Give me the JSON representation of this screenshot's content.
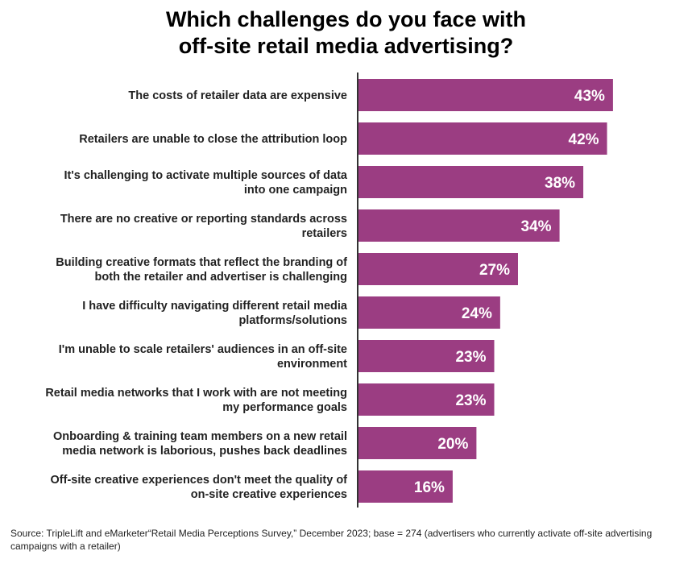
{
  "chart_data": {
    "type": "bar",
    "orientation": "horizontal",
    "title": "Which challenges do you face with off-site retail media advertising?",
    "title_lines": [
      "Which challenges do you face with",
      "off-site retail media advertising?"
    ],
    "categories": [
      [
        "The costs of retailer data are expensive"
      ],
      [
        "Retailers are unable to close the attribution loop"
      ],
      [
        "It's challenging to activate multiple sources of data",
        "into one campaign"
      ],
      [
        "There are no creative or reporting standards across",
        "retailers"
      ],
      [
        "Building creative formats that reflect the branding of",
        "both the retailer and advertiser is challenging"
      ],
      [
        "I have difficulty navigating different retail media",
        "platforms/solutions"
      ],
      [
        "I'm unable to scale retailers' audiences in an off-site",
        "environment"
      ],
      [
        "Retail media networks that I work with are not meeting",
        "my performance goals"
      ],
      [
        "Onboarding & training team members on a new retail",
        "media network is laborious, pushes back deadlines"
      ],
      [
        "Off-site creative experiences don't meet the quality of",
        "on-site creative experiences"
      ]
    ],
    "values": [
      43,
      42,
      38,
      34,
      27,
      24,
      23,
      23,
      20,
      16
    ],
    "data_labels": [
      "43%",
      "42%",
      "38%",
      "34%",
      "27%",
      "24%",
      "23%",
      "23%",
      "20%",
      "16%"
    ],
    "unit": "%",
    "bar_color": "#9b3d82",
    "grid": false
  },
  "source": "Source: TripleLift and eMarketer“Retail Media Perceptions Survey,” December 2023; base = 274 (advertisers who currently activate off-site advertising campaigns with a retailer)"
}
